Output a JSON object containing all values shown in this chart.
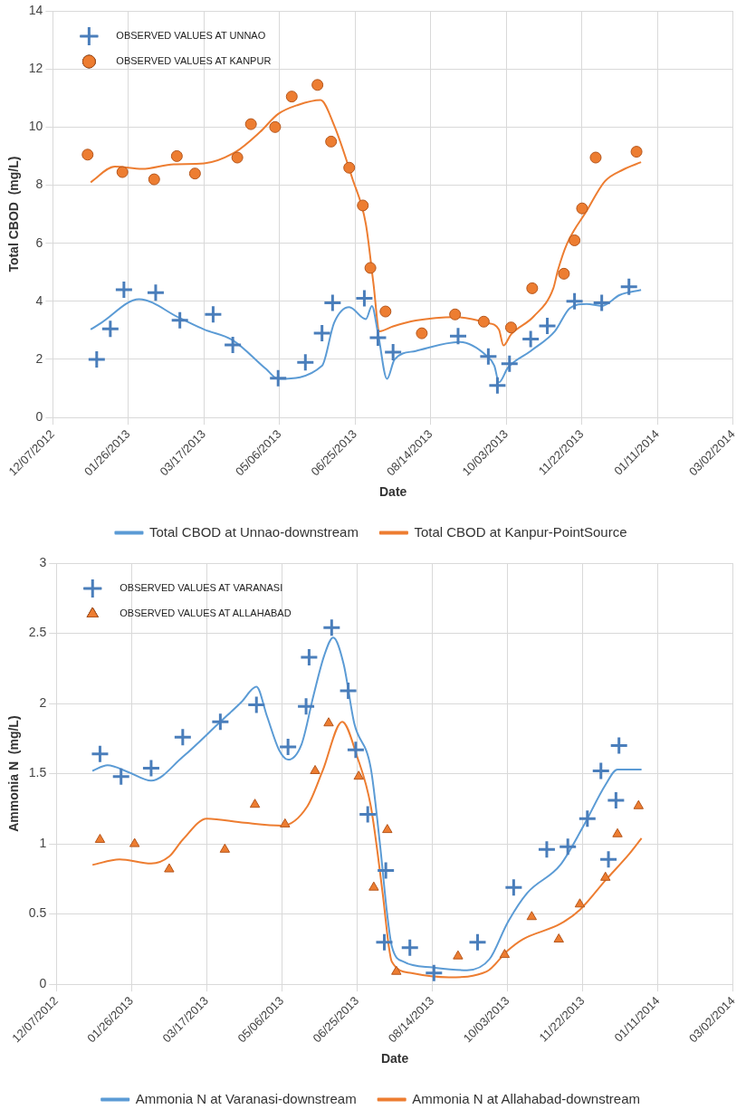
{
  "chart_data": [
    {
      "type": "line",
      "xlabel": "Date",
      "ylabel": "Total CBOD  (mg/L)",
      "grid": true,
      "legend": "bottom",
      "xlim": [
        "2012-12-07",
        "2014-03-02"
      ],
      "xticks": [
        {
          "value": "2012-12-07",
          "label": "12/07/2012"
        },
        {
          "value": "2013-01-26",
          "label": "01/26/2013"
        },
        {
          "value": "2013-03-17",
          "label": "03/17/2013"
        },
        {
          "value": "2013-05-06",
          "label": "05/06/2013"
        },
        {
          "value": "2013-06-25",
          "label": "06/25/2013"
        },
        {
          "value": "2013-08-14",
          "label": "08/14/2013"
        },
        {
          "value": "2013-10-03",
          "label": "10/03/2013"
        },
        {
          "value": "2013-11-22",
          "label": "11/22/2013"
        },
        {
          "value": "2014-01-11",
          "label": "01/11/2014"
        },
        {
          "value": "2014-03-02",
          "label": "03/02/2014"
        }
      ],
      "ylim": [
        0,
        14
      ],
      "yticks": [
        0,
        2,
        4,
        6,
        8,
        10,
        12,
        14
      ],
      "series": [
        {
          "name": "OBSERVED VALUES AT UNNAO",
          "type": "scatter",
          "marker": "cross",
          "color": "#4a7ebb",
          "x": [
            "2013-01-05",
            "2013-01-14",
            "2013-01-23",
            "2013-02-13",
            "2013-03-01",
            "2013-03-23",
            "2013-04-05",
            "2013-05-05",
            "2013-05-23",
            "2013-06-03",
            "2013-06-10",
            "2013-07-01",
            "2013-07-10",
            "2013-07-20",
            "2013-09-01",
            "2013-09-21",
            "2013-09-27",
            "2013-10-05",
            "2013-10-19",
            "2013-10-30",
            "2013-11-17",
            "2013-12-05",
            "2013-12-23"
          ],
          "values": [
            2.0,
            3.05,
            4.4,
            4.3,
            3.35,
            3.55,
            2.5,
            1.35,
            1.9,
            2.9,
            3.95,
            4.1,
            2.75,
            2.25,
            2.8,
            2.1,
            1.1,
            1.85,
            2.7,
            3.15,
            4.0,
            3.95,
            4.5
          ]
        },
        {
          "name": "OBSERVED VALUES AT KANPUR",
          "type": "scatter",
          "marker": "circle",
          "color": "#ed7d31",
          "x": [
            "2012-12-30",
            "2013-01-22",
            "2013-02-12",
            "2013-02-27",
            "2013-03-11",
            "2013-04-08",
            "2013-04-17",
            "2013-05-03",
            "2013-05-14",
            "2013-05-31",
            "2013-06-09",
            "2013-06-21",
            "2013-06-30",
            "2013-07-05",
            "2013-07-15",
            "2013-08-08",
            "2013-08-30",
            "2013-09-18",
            "2013-10-06",
            "2013-10-20",
            "2013-11-10",
            "2013-11-17",
            "2013-11-22",
            "2013-12-01",
            "2013-12-28"
          ],
          "values": [
            9.05,
            8.45,
            8.2,
            9.0,
            8.4,
            8.95,
            10.1,
            10.0,
            11.05,
            11.45,
            9.5,
            8.6,
            7.3,
            5.15,
            3.65,
            2.9,
            3.55,
            3.3,
            3.1,
            4.45,
            4.95,
            6.1,
            7.2,
            8.95,
            9.15
          ]
        },
        {
          "name": "Total CBOD at Unnao-downstream",
          "type": "line",
          "marker": "none",
          "color": "#5b9bd5",
          "x": [
            "2013-01-01",
            "2013-01-08",
            "2013-02-02",
            "2013-03-01",
            "2013-03-17",
            "2013-04-05",
            "2013-04-27",
            "2013-05-05",
            "2013-06-03",
            "2013-06-11",
            "2013-06-21",
            "2013-07-02",
            "2013-07-06",
            "2013-07-10",
            "2013-07-16",
            "2013-07-21",
            "2013-08-04",
            "2013-09-02",
            "2013-09-20",
            "2013-09-25",
            "2013-09-28",
            "2013-10-04",
            "2013-10-19",
            "2013-11-04",
            "2013-11-14",
            "2013-11-25",
            "2013-12-05",
            "2013-12-17",
            "2013-12-31"
          ],
          "values": [
            3.03,
            3.26,
            4.07,
            3.42,
            3.03,
            2.66,
            1.67,
            1.33,
            1.78,
            3.26,
            3.8,
            3.39,
            3.84,
            2.91,
            1.33,
            2.0,
            2.29,
            2.6,
            2.12,
            1.78,
            1.21,
            1.72,
            2.29,
            2.97,
            3.77,
            3.91,
            3.84,
            4.22,
            4.39
          ]
        },
        {
          "name": "Total CBOD at Kanpur-PointSource",
          "type": "line",
          "marker": "none",
          "color": "#ed7d31",
          "x": [
            "2013-01-01",
            "2013-01-17",
            "2013-02-04",
            "2013-02-25",
            "2013-03-17",
            "2013-04-07",
            "2013-04-23",
            "2013-05-05",
            "2013-05-18",
            "2013-06-02",
            "2013-06-11",
            "2013-06-23",
            "2013-07-02",
            "2013-07-07",
            "2013-07-11",
            "2013-07-20",
            "2013-08-04",
            "2013-08-30",
            "2013-09-20",
            "2013-09-28",
            "2013-10-01",
            "2013-10-06",
            "2013-10-21",
            "2013-11-03",
            "2013-11-06",
            "2013-11-12",
            "2013-11-25",
            "2013-12-07",
            "2013-12-19",
            "2013-12-31"
          ],
          "values": [
            8.1,
            8.64,
            8.56,
            8.72,
            8.75,
            9.15,
            9.83,
            10.45,
            10.76,
            10.93,
            10.06,
            8.24,
            6.66,
            4.62,
            2.97,
            3.14,
            3.34,
            3.46,
            3.26,
            3.03,
            2.48,
            2.86,
            3.48,
            4.45,
            5.07,
            5.98,
            7.11,
            8.13,
            8.53,
            8.79
          ]
        }
      ]
    },
    {
      "type": "line",
      "xlabel": "Date",
      "ylabel": "Ammonia N  (mg/L)",
      "grid": true,
      "legend": "bottom",
      "xlim": [
        "2012-12-07",
        "2014-03-02"
      ],
      "xticks": [
        {
          "value": "2012-12-07",
          "label": "12/07/2012"
        },
        {
          "value": "2013-01-26",
          "label": "01/26/2013"
        },
        {
          "value": "2013-03-17",
          "label": "03/17/2013"
        },
        {
          "value": "2013-05-06",
          "label": "05/06/2013"
        },
        {
          "value": "2013-06-25",
          "label": "06/25/2013"
        },
        {
          "value": "2013-08-14",
          "label": "08/14/2013"
        },
        {
          "value": "2013-10-03",
          "label": "10/03/2013"
        },
        {
          "value": "2013-11-22",
          "label": "11/22/2013"
        },
        {
          "value": "2014-01-11",
          "label": "01/11/2014"
        },
        {
          "value": "2014-03-02",
          "label": "03/02/2014"
        }
      ],
      "ylim": [
        0,
        3
      ],
      "yticks": [
        0,
        0.5,
        1,
        1.5,
        2,
        2.5,
        3
      ],
      "series": [
        {
          "name": "OBSERVED VALUES AT VARANASI",
          "type": "scatter",
          "marker": "cross",
          "color": "#4a7ebb",
          "x": [
            "2013-01-05",
            "2013-01-19",
            "2013-02-08",
            "2013-03-01",
            "2013-03-26",
            "2013-04-19",
            "2013-05-10",
            "2013-05-22",
            "2013-05-24",
            "2013-06-08",
            "2013-06-19",
            "2013-06-24",
            "2013-07-02",
            "2013-07-13",
            "2013-07-14",
            "2013-07-30",
            "2013-08-15",
            "2013-09-13",
            "2013-10-07",
            "2013-10-29",
            "2013-11-12",
            "2013-11-25",
            "2013-12-04",
            "2013-12-09",
            "2013-12-14",
            "2013-12-16"
          ],
          "values": [
            1.64,
            1.48,
            1.54,
            1.76,
            1.87,
            1.99,
            1.69,
            1.98,
            2.33,
            2.54,
            2.09,
            1.67,
            1.21,
            0.3,
            0.81,
            0.26,
            0.08,
            0.3,
            0.69,
            0.96,
            0.98,
            1.18,
            1.52,
            0.89,
            1.31,
            1.7
          ]
        },
        {
          "name": "OBSERVED VALUES AT ALLAHABAD",
          "type": "scatter",
          "marker": "triangle",
          "color": "#ed7d31",
          "x": [
            "2013-01-05",
            "2013-01-28",
            "2013-02-20",
            "2013-03-29",
            "2013-04-18",
            "2013-05-08",
            "2013-05-28",
            "2013-06-06",
            "2013-06-26",
            "2013-07-06",
            "2013-07-15",
            "2013-07-21",
            "2013-08-31",
            "2013-10-01",
            "2013-10-19",
            "2013-11-06",
            "2013-11-20",
            "2013-12-07",
            "2013-12-15",
            "2013-12-29"
          ],
          "values": [
            1.03,
            1.0,
            0.82,
            0.96,
            1.28,
            1.14,
            1.52,
            1.86,
            1.48,
            0.69,
            1.1,
            0.09,
            0.2,
            0.21,
            0.48,
            0.32,
            0.57,
            0.76,
            1.07,
            1.27
          ]
        },
        {
          "name": "Ammonia N at Varanasi-downstream",
          "type": "line",
          "marker": "none",
          "color": "#5b9bd5",
          "x": [
            "2012-12-31",
            "2013-01-10",
            "2013-01-24",
            "2013-02-08",
            "2013-03-01",
            "2013-03-26",
            "2013-04-09",
            "2013-04-19",
            "2013-04-26",
            "2013-05-04",
            "2013-05-10",
            "2013-05-19",
            "2013-05-27",
            "2013-06-03",
            "2013-06-09",
            "2013-06-16",
            "2013-06-23",
            "2013-07-04",
            "2013-07-10",
            "2013-07-15",
            "2013-07-18",
            "2013-07-26",
            "2013-08-14",
            "2013-09-06",
            "2013-09-21",
            "2013-10-03",
            "2013-10-16",
            "2013-11-07",
            "2013-11-22",
            "2013-12-07",
            "2013-12-15",
            "2013-12-31"
          ],
          "values": [
            1.52,
            1.56,
            1.51,
            1.45,
            1.62,
            1.87,
            2.01,
            2.12,
            1.91,
            1.67,
            1.6,
            1.71,
            2.06,
            2.34,
            2.47,
            2.28,
            1.86,
            1.54,
            1.01,
            0.49,
            0.27,
            0.16,
            0.12,
            0.1,
            0.18,
            0.44,
            0.65,
            0.85,
            1.12,
            1.42,
            1.53,
            1.53
          ]
        },
        {
          "name": "Ammonia N at Allahabad-downstream",
          "type": "line",
          "marker": "none",
          "color": "#ed7d31",
          "x": [
            "2012-12-31",
            "2013-01-18",
            "2013-02-08",
            "2013-02-20",
            "2013-03-01",
            "2013-03-17",
            "2013-04-11",
            "2013-05-06",
            "2013-05-23",
            "2013-06-02",
            "2013-06-15",
            "2013-06-25",
            "2013-07-04",
            "2013-07-12",
            "2013-07-16",
            "2013-07-18",
            "2013-07-31",
            "2013-08-25",
            "2013-09-19",
            "2013-10-03",
            "2013-10-13",
            "2013-11-07",
            "2013-11-20",
            "2013-12-07",
            "2013-12-23",
            "2013-12-31"
          ],
          "values": [
            0.85,
            0.89,
            0.86,
            0.91,
            1.03,
            1.18,
            1.15,
            1.13,
            1.27,
            1.52,
            1.87,
            1.62,
            1.27,
            0.64,
            0.27,
            0.16,
            0.08,
            0.05,
            0.09,
            0.24,
            0.32,
            0.43,
            0.53,
            0.74,
            0.93,
            1.04
          ]
        }
      ]
    }
  ]
}
